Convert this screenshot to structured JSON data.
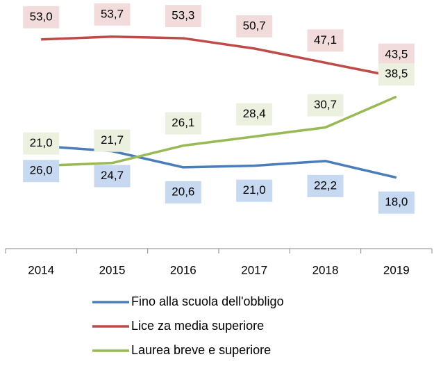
{
  "chart_data": {
    "type": "line",
    "categories": [
      "2014",
      "2015",
      "2016",
      "2017",
      "2018",
      "2019"
    ],
    "series": [
      {
        "name": "Fino alla scuola dell'obbligo",
        "color": "#4a7ebb",
        "label_bg": "#c6d9f1",
        "values": [
          26.0,
          24.7,
          20.6,
          21.0,
          22.2,
          18.0
        ],
        "value_labels": [
          "26,0",
          "24,7",
          "20,6",
          "21,0",
          "22,2",
          "18,0"
        ]
      },
      {
        "name": "Lice za media superiore",
        "color": "#be4b48",
        "label_bg": "#f2dcdb",
        "values": [
          53.0,
          53.7,
          53.3,
          50.7,
          47.1,
          43.5
        ],
        "value_labels": [
          "53,0",
          "53,7",
          "53,3",
          "50,7",
          "47,1",
          "43,5"
        ]
      },
      {
        "name": "Laurea breve e superiore",
        "color": "#98b954",
        "label_bg": "#ebf1de",
        "values": [
          21.0,
          21.7,
          26.1,
          28.4,
          30.7,
          38.5
        ],
        "value_labels": [
          "21,0",
          "21,7",
          "26,1",
          "28,4",
          "30,7",
          "38,5"
        ]
      }
    ],
    "ylim": [
      0,
      60
    ],
    "legend": "bottom"
  }
}
